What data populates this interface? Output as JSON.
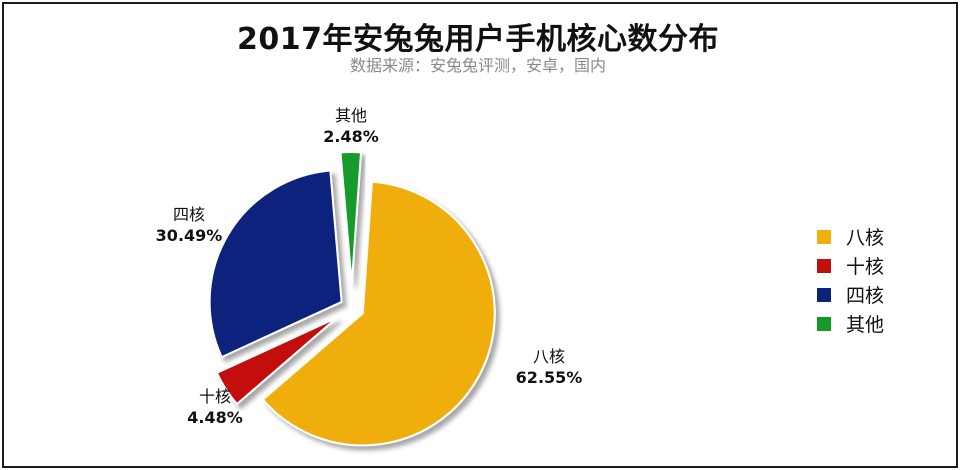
{
  "chart_data": {
    "type": "pie",
    "title": "2017年安兔兔用户手机核心数分布",
    "subtitle": "数据来源：安兔兔评测，安卓，国内",
    "legend_position": "right",
    "slices": [
      {
        "label": "八核",
        "value": 62.55,
        "value_label": "62.55%",
        "color": "#F0AE0F"
      },
      {
        "label": "十核",
        "value": 4.48,
        "value_label": "4.48%",
        "color": "#C40D0D"
      },
      {
        "label": "四核",
        "value": 30.49,
        "value_label": "30.49%",
        "color": "#0B237D"
      },
      {
        "label": "其他",
        "value": 2.48,
        "value_label": "2.48%",
        "color": "#159A2A"
      }
    ]
  }
}
